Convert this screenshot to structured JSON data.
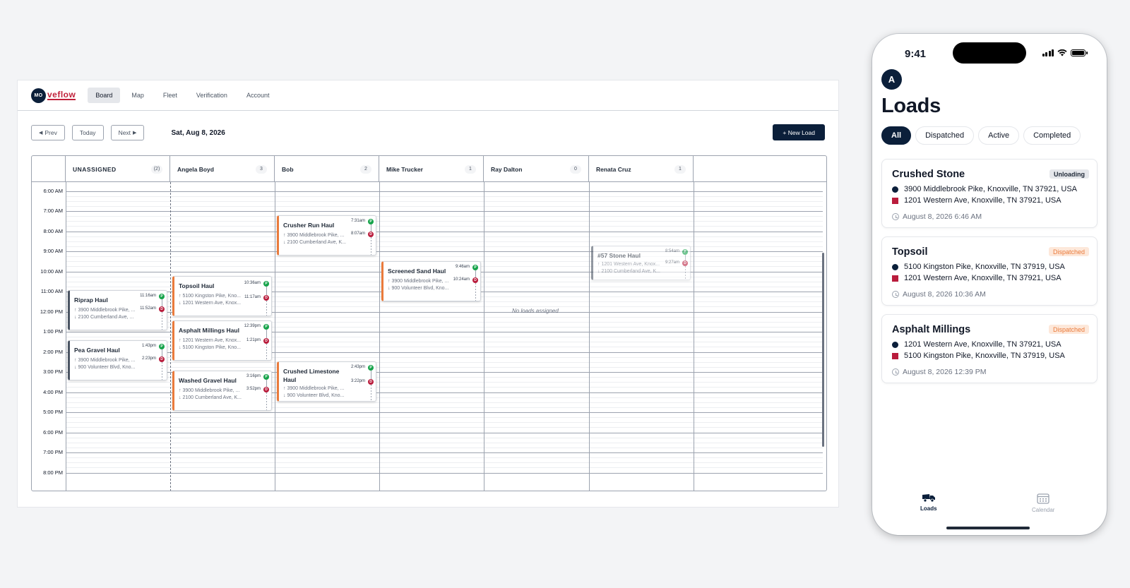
{
  "desktop": {
    "logo": {
      "mark": "MO",
      "text": "veflow"
    },
    "nav": [
      {
        "label": "Board",
        "active": true
      },
      {
        "label": "Map",
        "active": false
      },
      {
        "label": "Fleet",
        "active": false
      },
      {
        "label": "Verification",
        "active": false
      },
      {
        "label": "Account",
        "active": false
      }
    ],
    "toolbar": {
      "prev": "Prev",
      "today": "Today",
      "next": "Next",
      "date": "Sat, Aug 8, 2026",
      "new_load": "+ New Load"
    },
    "columns": [
      {
        "name": "UNASSIGNED",
        "count": "(2)"
      },
      {
        "name": "Angela Boyd",
        "count": "3"
      },
      {
        "name": "Bob",
        "count": "2"
      },
      {
        "name": "Mike Trucker",
        "count": "1"
      },
      {
        "name": "Ray Dalton",
        "count": "0"
      },
      {
        "name": "Renata Cruz",
        "count": "1"
      }
    ],
    "times": [
      "6:00 AM",
      "7:00 AM",
      "8:00 AM",
      "9:00 AM",
      "10:00 AM",
      "11:00 AM",
      "12:00 PM",
      "1:00 PM",
      "2:00 PM",
      "3:00 PM",
      "4:00 PM",
      "5:00 PM",
      "6:00 PM",
      "7:00 PM",
      "8:00 PM"
    ],
    "no_loads": "No loads assigned",
    "cards": [
      {
        "title": "Riprap Haul",
        "origin": "↑ 3900 Middlebrook Pike, ...",
        "dest": "↓ 2100 Cumberland Ave, ...",
        "start": "11:16am",
        "end": "11:52am"
      },
      {
        "title": "Pea Gravel Haul",
        "origin": "↑ 3900 Middlebrook Pike, ...",
        "dest": "↓ 900 Volunteer Blvd, Kno...",
        "start": "1:43pm",
        "end": "2:23pm"
      },
      {
        "title": "Topsoil Haul",
        "origin": "↑ 5100 Kingston Pike, Kno...",
        "dest": "↓ 1201 Western Ave, Knox...",
        "start": "10:36am",
        "end": "11:17am"
      },
      {
        "title": "Asphalt Millings Haul",
        "origin": "↑ 1201 Western Ave, Knox...",
        "dest": "↓ 5100 Kingston Pike, Kno...",
        "start": "12:39pm",
        "end": "1:21pm"
      },
      {
        "title": "Washed Gravel Haul",
        "origin": "↑ 3900 Middlebrook Pike, ...",
        "dest": "↓ 2100 Cumberland Ave, K...",
        "start": "3:16pm",
        "end": "3:52pm"
      },
      {
        "title": "Crusher Run Haul",
        "origin": "↑ 3900 Middlebrook Pike, ...",
        "dest": "↓ 2100 Cumberland Ave, K...",
        "start": "7:31am",
        "end": "8:07am"
      },
      {
        "title": "Crushed Limestone Haul",
        "origin": "↑ 3900 Middlebrook Pike, ...",
        "dest": "↓ 900 Volunteer Blvd, Kno...",
        "start": "2:43pm",
        "end": "3:22pm"
      },
      {
        "title": "Screened Sand Haul",
        "origin": "↑ 3900 Middlebrook Pike, ...",
        "dest": "↓ 900 Volunteer Blvd, Kno...",
        "start": "9:46am",
        "end": "10:24am"
      },
      {
        "title": "#57 Stone Haul",
        "origin": "↑ 1201 Western Ave, Knox...",
        "dest": "↓ 2100 Cumberland Ave, K...",
        "start": "8:54am",
        "end": "9:27am"
      }
    ],
    "pin_labels": {
      "pickup": "P",
      "dropoff": "D"
    }
  },
  "phone": {
    "status_time": "9:41",
    "avatar": "A",
    "title": "Loads",
    "filters": [
      {
        "label": "All",
        "active": true
      },
      {
        "label": "Dispatched",
        "active": false
      },
      {
        "label": "Active",
        "active": false
      },
      {
        "label": "Completed",
        "active": false
      }
    ],
    "loads": [
      {
        "title": "Crushed Stone",
        "status": "Unloading",
        "origin": "3900 Middlebrook Pike, Knoxville, TN 37921, USA",
        "dest": "1201 Western Ave, Knoxville, TN 37921, USA",
        "date": "August 8, 2026 6:46 AM"
      },
      {
        "title": "Topsoil",
        "status": "Dispatched",
        "origin": "5100 Kingston Pike, Knoxville, TN 37919, USA",
        "dest": "1201 Western Ave, Knoxville, TN 37921, USA",
        "date": "August 8, 2026 10:36 AM"
      },
      {
        "title": "Asphalt Millings",
        "status": "Dispatched",
        "origin": "1201 Western Ave, Knoxville, TN 37921, USA",
        "dest": "5100 Kingston Pike, Knoxville, TN 37919, USA",
        "date": "August 8, 2026 12:39 PM"
      }
    ],
    "tabs": [
      {
        "label": "Loads",
        "icon": "truck-icon",
        "active": true
      },
      {
        "label": "Calendar",
        "icon": "calendar-icon",
        "active": false
      }
    ]
  },
  "colors": {
    "navy": "#0b1f3a",
    "accent_orange": "#ea7b3c",
    "destination_red": "#b91c3c",
    "pickup_green": "#16a34a"
  }
}
